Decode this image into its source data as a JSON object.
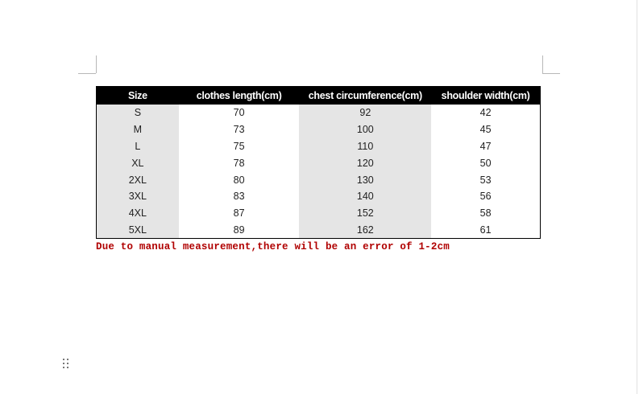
{
  "table": {
    "headers": [
      "Size",
      "clothes length(cm)",
      "chest circumference(cm)",
      "shoulder width(cm)"
    ],
    "rows": [
      [
        "S",
        "70",
        "92",
        "42"
      ],
      [
        "M",
        "73",
        "100",
        "45"
      ],
      [
        "L",
        "75",
        "110",
        "47"
      ],
      [
        "XL",
        "78",
        "120",
        "50"
      ],
      [
        "2XL",
        "80",
        "130",
        "53"
      ],
      [
        "3XL",
        "83",
        "140",
        "56"
      ],
      [
        "4XL",
        "87",
        "152",
        "58"
      ],
      [
        "5XL",
        "89",
        "162",
        "61"
      ]
    ]
  },
  "note": "Due to manual measurement,there will be an error of 1-2cm",
  "colors": {
    "header_bg": "#000000",
    "note": "#b00000",
    "shaded_column": "#e5e5e5"
  }
}
